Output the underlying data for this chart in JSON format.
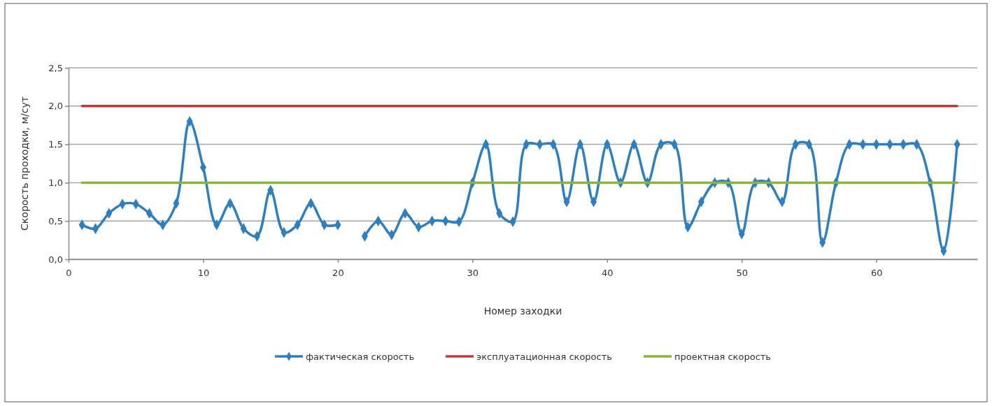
{
  "chart_data": {
    "type": "line",
    "xlabel": "Номер заходки",
    "ylabel": "Скорость проходки, м/сут",
    "x": [
      1,
      2,
      3,
      4,
      5,
      6,
      7,
      8,
      9,
      10,
      11,
      12,
      13,
      14,
      15,
      16,
      17,
      18,
      19,
      20,
      21,
      22,
      23,
      24,
      25,
      26,
      27,
      28,
      29,
      30,
      31,
      32,
      33,
      34,
      35,
      36,
      37,
      38,
      39,
      40,
      41,
      42,
      43,
      44,
      45,
      46,
      47,
      48,
      49,
      50,
      51,
      52,
      53,
      54,
      55,
      56,
      57,
      58,
      59,
      60,
      61,
      62,
      63,
      64,
      65,
      66
    ],
    "xlim": [
      0,
      67.5
    ],
    "xticks": [
      0,
      10,
      20,
      30,
      40,
      50,
      60
    ],
    "ylim": [
      0,
      2.5
    ],
    "yticks": [
      {
        "value": 0,
        "label": "0,0"
      },
      {
        "value": 0.5,
        "label": "0,5"
      },
      {
        "value": 1,
        "label": "1,0"
      },
      {
        "value": 1.5,
        "label": "1,5"
      },
      {
        "value": 2,
        "label": "2,0"
      },
      {
        "value": 2.5,
        "label": "2,5"
      }
    ],
    "grid": "y",
    "legend": "bottom",
    "line_style": "solid",
    "series": [
      {
        "name": "фактическая скорость",
        "color": "#2e7fc0",
        "marker": "diamond",
        "values": [
          0.45,
          0.4,
          0.6,
          0.72,
          0.72,
          0.6,
          0.45,
          0.73,
          1.8,
          1.2,
          0.45,
          0.73,
          0.4,
          0.3,
          0.9,
          0.35,
          0.45,
          0.73,
          0.45,
          0.45,
          null,
          0.3,
          0.5,
          0.32,
          0.6,
          0.42,
          0.5,
          0.5,
          0.49,
          1.0,
          1.5,
          0.6,
          0.49,
          1.5,
          1.5,
          1.5,
          0.75,
          1.5,
          0.75,
          1.5,
          1.0,
          1.5,
          1.0,
          1.5,
          1.5,
          0.42,
          0.75,
          1.0,
          1.0,
          0.33,
          1.0,
          1.0,
          0.75,
          1.5,
          1.5,
          0.22,
          1.0,
          1.5,
          1.5,
          1.5,
          1.5,
          1.5,
          1.5,
          1.0,
          0.11,
          1.5
        ]
      },
      {
        "name": "эксплуатационная скорость",
        "color": "#c0393b",
        "marker": "none",
        "values": [
          2,
          2,
          2,
          2,
          2,
          2,
          2,
          2,
          2,
          2,
          2,
          2,
          2,
          2,
          2,
          2,
          2,
          2,
          2,
          2,
          2,
          2,
          2,
          2,
          2,
          2,
          2,
          2,
          2,
          2,
          2,
          2,
          2,
          2,
          2,
          2,
          2,
          2,
          2,
          2,
          2,
          2,
          2,
          2,
          2,
          2,
          2,
          2,
          2,
          2,
          2,
          2,
          2,
          2,
          2,
          2,
          2,
          2,
          2,
          2,
          2,
          2,
          2,
          2,
          2,
          2
        ]
      },
      {
        "name": "проектная скорость",
        "color": "#8db33a",
        "marker": "none",
        "values": [
          1,
          1,
          1,
          1,
          1,
          1,
          1,
          1,
          1,
          1,
          1,
          1,
          1,
          1,
          1,
          1,
          1,
          1,
          1,
          1,
          1,
          1,
          1,
          1,
          1,
          1,
          1,
          1,
          1,
          1,
          1,
          1,
          1,
          1,
          1,
          1,
          1,
          1,
          1,
          1,
          1,
          1,
          1,
          1,
          1,
          1,
          1,
          1,
          1,
          1,
          1,
          1,
          1,
          1,
          1,
          1,
          1,
          1,
          1,
          1,
          1,
          1,
          1,
          1,
          1,
          1
        ]
      }
    ]
  }
}
